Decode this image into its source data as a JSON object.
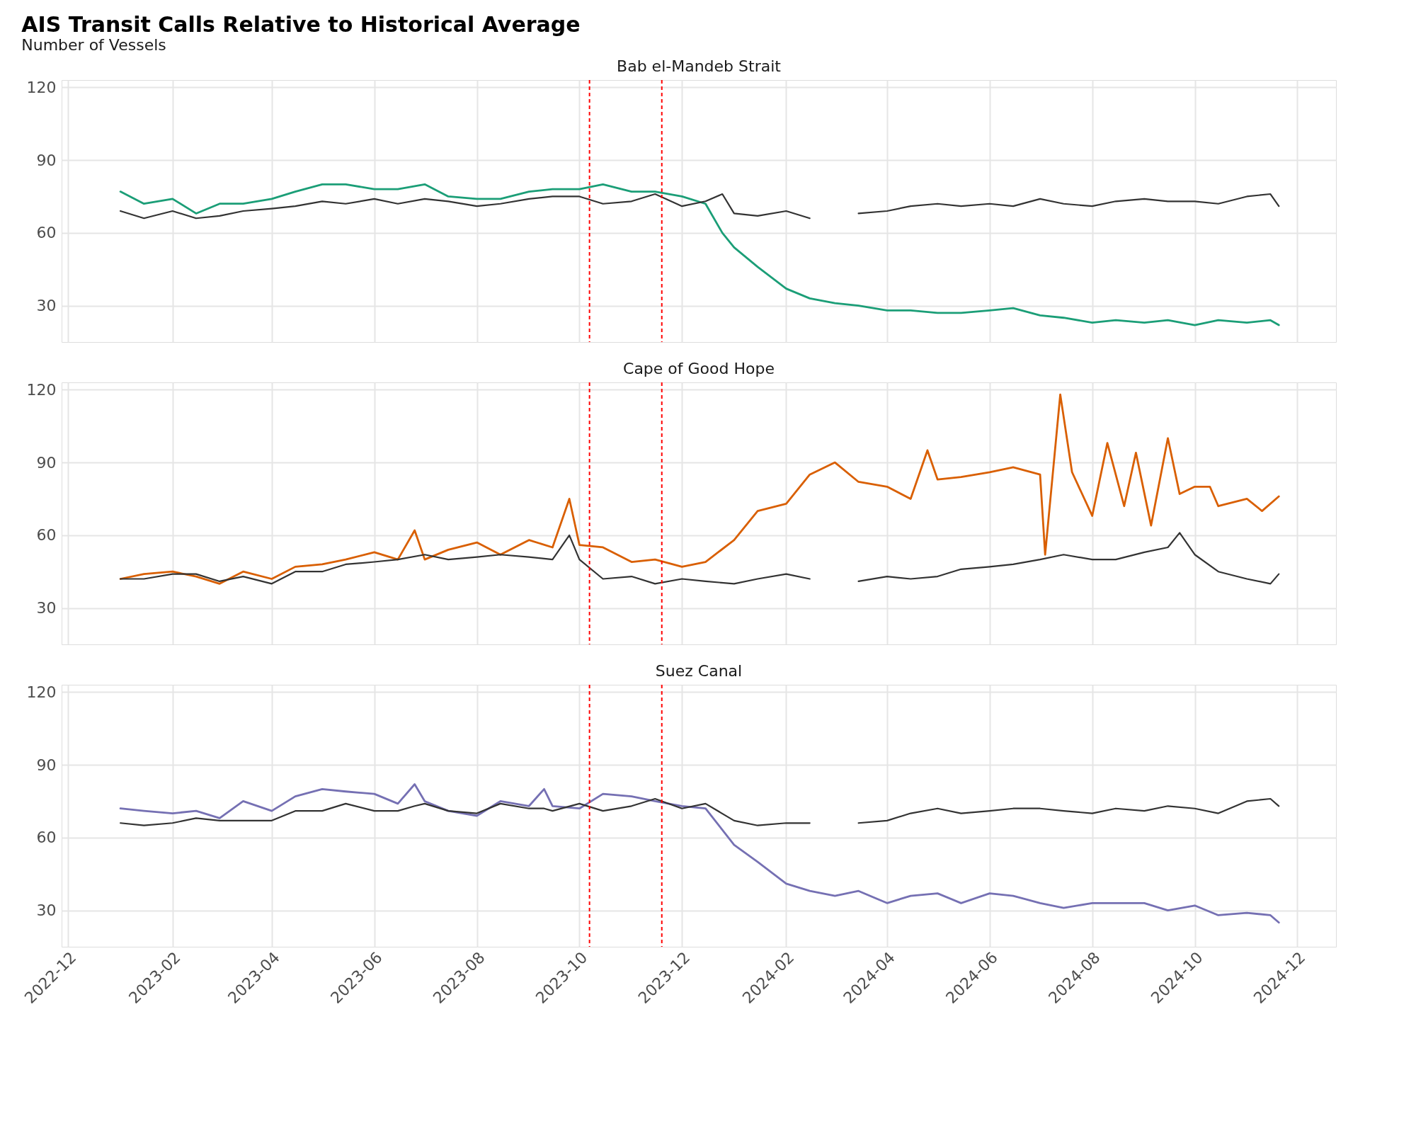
{
  "chart_data": [
    {
      "type": "line",
      "title": "AIS Transit Calls Relative to Historical Average",
      "subtitle": "Number of Vessels",
      "annotations": [
        "Bab el-Mandeb Strait"
      ],
      "x": [
        "2023-01-01",
        "2023-01-15",
        "2023-02-01",
        "2023-02-15",
        "2023-03-01",
        "2023-03-15",
        "2023-04-01",
        "2023-04-15",
        "2023-05-01",
        "2023-05-15",
        "2023-06-01",
        "2023-06-15",
        "2023-07-01",
        "2023-07-15",
        "2023-08-01",
        "2023-08-15",
        "2023-09-01",
        "2023-09-15",
        "2023-10-01",
        "2023-10-15",
        "2023-11-01",
        "2023-11-15",
        "2023-12-01",
        "2023-12-15",
        "2023-12-25",
        "2024-01-01",
        "2024-01-15",
        "2024-02-01",
        "2024-02-15",
        "2024-03-01",
        "2024-03-15",
        "2024-04-01",
        "2024-04-15",
        "2024-05-01",
        "2024-05-15",
        "2024-06-01",
        "2024-06-15",
        "2024-07-01",
        "2024-07-15",
        "2024-08-01",
        "2024-08-15",
        "2024-09-01",
        "2024-09-15",
        "2024-10-01",
        "2024-10-15",
        "2024-11-01",
        "2024-11-15",
        "2024-11-20"
      ],
      "series": [
        {
          "color": "#1b9e77",
          "values": [
            77,
            72,
            74,
            68,
            72,
            72,
            74,
            77,
            80,
            80,
            78,
            78,
            80,
            75,
            74,
            74,
            77,
            78,
            78,
            80,
            77,
            77,
            75,
            72,
            60,
            54,
            46,
            37,
            33,
            31,
            30,
            28,
            28,
            27,
            27,
            28,
            29,
            26,
            25,
            23,
            24,
            23,
            24,
            22,
            24,
            23,
            24,
            22
          ]
        },
        {
          "color": "#333333",
          "values": [
            69,
            66,
            69,
            66,
            67,
            69,
            70,
            71,
            73,
            72,
            74,
            72,
            74,
            73,
            71,
            72,
            74,
            75,
            75,
            72,
            73,
            76,
            71,
            73,
            76,
            68,
            67,
            69,
            66,
            null,
            68,
            69,
            71,
            72,
            71,
            72,
            71,
            74,
            72,
            71,
            73,
            74,
            73,
            73,
            72,
            75,
            76,
            71
          ]
        }
      ],
      "xlim": [
        "2022-11-27",
        "2024-12-24"
      ],
      "xticks": [
        "2022-12",
        "2023-02",
        "2023-04",
        "2023-06",
        "2023-08",
        "2023-10",
        "2023-12",
        "2024-02",
        "2024-04",
        "2024-06",
        "2024-08",
        "2024-10",
        "2024-12"
      ],
      "ylim": [
        15,
        123
      ],
      "yticks": [
        30,
        60,
        90,
        120
      ],
      "grid": true,
      "tick_labels": "y",
      "ref_lines": [
        {
          "axis": "x",
          "value": "2023-10-07",
          "color": "#ff0000",
          "line_style": "dashed"
        },
        {
          "axis": "x",
          "value": "2023-11-19",
          "color": "#ff0000",
          "line_style": "dashed"
        }
      ]
    },
    {
      "type": "line",
      "title": "Cape of Good Hope",
      "series": [
        {
          "color": "#d95f02",
          "x": [
            "2023-01-01",
            "2023-01-15",
            "2023-02-01",
            "2023-02-15",
            "2023-03-01",
            "2023-03-15",
            "2023-04-01",
            "2023-04-15",
            "2023-05-01",
            "2023-05-15",
            "2023-06-01",
            "2023-06-15",
            "2023-06-25",
            "2023-07-01",
            "2023-07-15",
            "2023-08-01",
            "2023-08-15",
            "2023-09-01",
            "2023-09-15",
            "2023-09-25",
            "2023-10-01",
            "2023-10-15",
            "2023-11-01",
            "2023-11-15",
            "2023-12-01",
            "2023-12-15",
            "2024-01-01",
            "2024-01-15",
            "2024-02-01",
            "2024-02-15",
            "2024-03-01",
            "2024-03-15",
            "2024-04-01",
            "2024-04-15",
            "2024-04-25",
            "2024-05-01",
            "2024-05-15",
            "2024-06-01",
            "2024-06-15",
            "2024-07-01",
            "2024-07-04",
            "2024-07-13",
            "2024-07-20",
            "2024-08-01",
            "2024-08-10",
            "2024-08-20",
            "2024-08-27",
            "2024-09-05",
            "2024-09-15",
            "2024-09-22",
            "2024-10-01",
            "2024-10-10",
            "2024-10-15",
            "2024-11-01",
            "2024-11-10",
            "2024-11-20"
          ],
          "values": [
            42,
            44,
            45,
            43,
            40,
            45,
            42,
            47,
            48,
            50,
            53,
            50,
            62,
            50,
            54,
            57,
            52,
            58,
            55,
            75,
            56,
            55,
            49,
            50,
            47,
            49,
            58,
            70,
            73,
            85,
            90,
            82,
            80,
            75,
            95,
            83,
            84,
            86,
            88,
            85,
            52,
            118,
            86,
            68,
            98,
            72,
            94,
            64,
            100,
            77,
            80,
            80,
            72,
            75,
            70,
            76
          ]
        },
        {
          "color": "#333333",
          "x": [
            "2023-01-01",
            "2023-01-15",
            "2023-02-01",
            "2023-02-15",
            "2023-03-01",
            "2023-03-15",
            "2023-04-01",
            "2023-04-15",
            "2023-05-01",
            "2023-05-15",
            "2023-06-01",
            "2023-06-15",
            "2023-07-01",
            "2023-07-15",
            "2023-08-01",
            "2023-08-15",
            "2023-09-01",
            "2023-09-15",
            "2023-09-25",
            "2023-10-01",
            "2023-10-15",
            "2023-11-01",
            "2023-11-15",
            "2023-12-01",
            "2023-12-15",
            "2024-01-01",
            "2024-01-15",
            "2024-02-01",
            "2024-02-15",
            "2024-03-01",
            "2024-03-15",
            "2024-04-01",
            "2024-04-15",
            "2024-05-01",
            "2024-05-15",
            "2024-06-01",
            "2024-06-15",
            "2024-07-01",
            "2024-07-15",
            "2024-08-01",
            "2024-08-15",
            "2024-09-01",
            "2024-09-15",
            "2024-09-22",
            "2024-10-01",
            "2024-10-15",
            "2024-11-01",
            "2024-11-15",
            "2024-11-20"
          ],
          "values": [
            42,
            42,
            44,
            44,
            41,
            43,
            40,
            45,
            45,
            48,
            49,
            50,
            52,
            50,
            51,
            52,
            51,
            50,
            60,
            50,
            42,
            43,
            40,
            42,
            41,
            40,
            42,
            44,
            42,
            null,
            41,
            43,
            42,
            43,
            46,
            47,
            48,
            50,
            52,
            50,
            50,
            53,
            55,
            61,
            52,
            45,
            42,
            40,
            44
          ]
        }
      ],
      "xlim": [
        "2022-11-27",
        "2024-12-24"
      ],
      "xticks": [
        "2022-12",
        "2023-02",
        "2023-04",
        "2023-06",
        "2023-08",
        "2023-10",
        "2023-12",
        "2024-02",
        "2024-04",
        "2024-06",
        "2024-08",
        "2024-10",
        "2024-12"
      ],
      "ylim": [
        15,
        123
      ],
      "yticks": [
        30,
        60,
        90,
        120
      ],
      "grid": true,
      "tick_labels": "y",
      "ref_lines": [
        {
          "axis": "x",
          "value": "2023-10-07",
          "color": "#ff0000",
          "line_style": "dashed"
        },
        {
          "axis": "x",
          "value": "2023-11-19",
          "color": "#ff0000",
          "line_style": "dashed"
        }
      ]
    },
    {
      "type": "line",
      "title": "Suez Canal",
      "x": [
        "2023-01-01",
        "2023-01-15",
        "2023-02-01",
        "2023-02-15",
        "2023-03-01",
        "2023-03-15",
        "2023-04-01",
        "2023-04-15",
        "2023-05-01",
        "2023-05-15",
        "2023-06-01",
        "2023-06-15",
        "2023-06-25",
        "2023-07-01",
        "2023-07-15",
        "2023-08-01",
        "2023-08-15",
        "2023-09-01",
        "2023-09-10",
        "2023-09-15",
        "2023-10-01",
        "2023-10-15",
        "2023-11-01",
        "2023-11-15",
        "2023-12-01",
        "2023-12-15",
        "2024-01-01",
        "2024-01-15",
        "2024-02-01",
        "2024-02-15",
        "2024-03-01",
        "2024-03-15",
        "2024-04-01",
        "2024-04-15",
        "2024-05-01",
        "2024-05-15",
        "2024-06-01",
        "2024-06-15",
        "2024-07-01",
        "2024-07-15",
        "2024-08-01",
        "2024-08-15",
        "2024-09-01",
        "2024-09-15",
        "2024-10-01",
        "2024-10-15",
        "2024-11-01",
        "2024-11-15",
        "2024-11-20"
      ],
      "series": [
        {
          "color": "#7570b3",
          "values": [
            72,
            71,
            70,
            71,
            68,
            75,
            71,
            77,
            80,
            79,
            78,
            74,
            82,
            75,
            71,
            69,
            75,
            73,
            80,
            73,
            72,
            78,
            77,
            75,
            73,
            72,
            57,
            50,
            41,
            38,
            36,
            38,
            33,
            36,
            37,
            33,
            37,
            36,
            33,
            31,
            33,
            33,
            33,
            30,
            32,
            28,
            29,
            28,
            25
          ]
        },
        {
          "color": "#333333",
          "values": [
            66,
            65,
            66,
            68,
            67,
            67,
            67,
            71,
            71,
            74,
            71,
            71,
            73,
            74,
            71,
            70,
            74,
            72,
            72,
            71,
            74,
            71,
            73,
            76,
            72,
            74,
            67,
            65,
            66,
            66,
            null,
            66,
            67,
            70,
            72,
            70,
            71,
            72,
            72,
            71,
            70,
            72,
            71,
            73,
            72,
            70,
            75,
            76,
            73
          ]
        }
      ],
      "xlim": [
        "2022-11-27",
        "2024-12-24"
      ],
      "xticks": [
        "2022-12",
        "2023-02",
        "2023-04",
        "2023-06",
        "2023-08",
        "2023-10",
        "2023-12",
        "2024-02",
        "2024-04",
        "2024-06",
        "2024-08",
        "2024-10",
        "2024-12"
      ],
      "ylim": [
        15,
        123
      ],
      "yticks": [
        30,
        60,
        90,
        120
      ],
      "grid": true,
      "ref_lines": [
        {
          "axis": "x",
          "value": "2023-10-07",
          "color": "#ff0000",
          "line_style": "dashed"
        },
        {
          "axis": "x",
          "value": "2023-11-19",
          "color": "#ff0000",
          "line_style": "dashed"
        }
      ]
    }
  ]
}
